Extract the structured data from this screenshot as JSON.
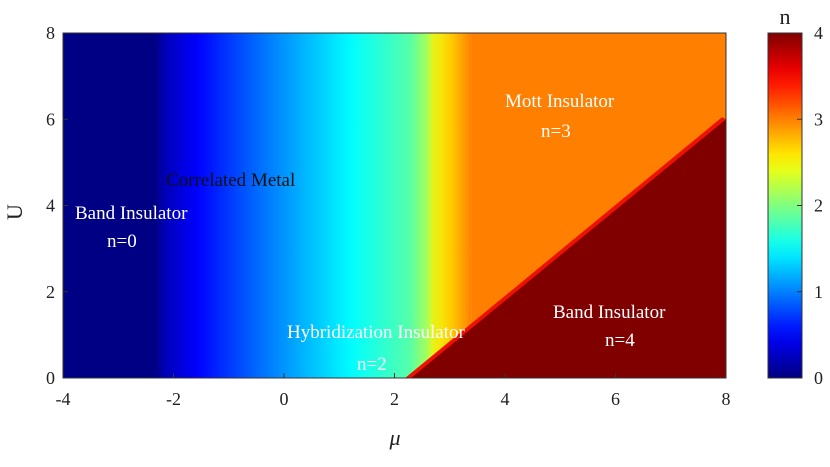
{
  "chart_data": {
    "type": "heatmap",
    "title": "",
    "xlabel": "μ",
    "ylabel": "U",
    "xlim": [
      -4,
      8
    ],
    "ylim": [
      0,
      8
    ],
    "xticks": [
      "-4",
      "-2",
      "0",
      "2",
      "4",
      "6",
      "8"
    ],
    "yticks": [
      "0",
      "2",
      "4",
      "6",
      "8"
    ],
    "colorbar": {
      "label": "n",
      "range": [
        0,
        4
      ],
      "ticks": [
        "0",
        "1",
        "2",
        "3",
        "4"
      ],
      "colormap": "jet"
    },
    "regions": [
      {
        "name": "Band Insulator",
        "value": "n=0",
        "color": "#ffffff"
      },
      {
        "name": "Correlated Metal",
        "value": "",
        "color": "#111111"
      },
      {
        "name": "Hybridization Insulator",
        "value": "n=2",
        "color": "#ffffff"
      },
      {
        "name": "Mott Insulator",
        "value": "n=3",
        "color": "#ffffff"
      },
      {
        "name": "Band Insulator",
        "value": "n=4",
        "color": "#ffffff"
      }
    ],
    "boundaries": {
      "n0_edge_mu": -2.2,
      "n3_edge_mu": 3.4,
      "n4_line": {
        "mu_at_U0": 2.3,
        "mu_at_U6": 8.0
      }
    }
  }
}
